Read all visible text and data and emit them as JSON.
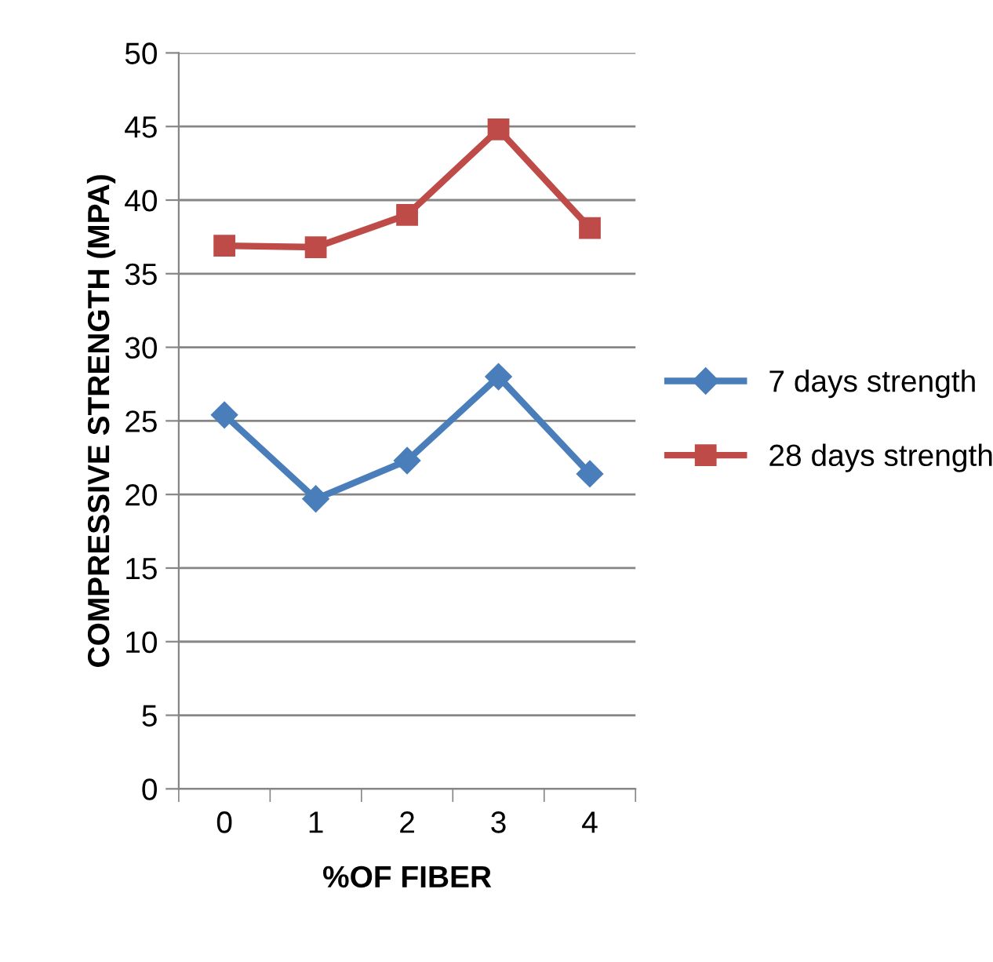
{
  "chart_data": {
    "type": "line",
    "xlabel": "%OF FIBER",
    "ylabel": "COMPRESSIVE STRENGTH (MPA)",
    "categories": [
      "0",
      "1",
      "2",
      "3",
      "4"
    ],
    "series": [
      {
        "name": "7 days strength",
        "color": "#4a7ebb",
        "marker": "diamond",
        "values": [
          25.4,
          19.7,
          22.3,
          28.0,
          21.4
        ]
      },
      {
        "name": "28 days strength",
        "color": "#be4b48",
        "marker": "square",
        "values": [
          36.9,
          36.8,
          39.0,
          44.8,
          38.1
        ]
      }
    ],
    "ylim": [
      0,
      50
    ],
    "yticks": [
      0,
      5,
      10,
      15,
      20,
      25,
      30,
      35,
      40,
      45,
      50
    ],
    "grid": "y",
    "legend": "right",
    "line_style": "solid"
  }
}
